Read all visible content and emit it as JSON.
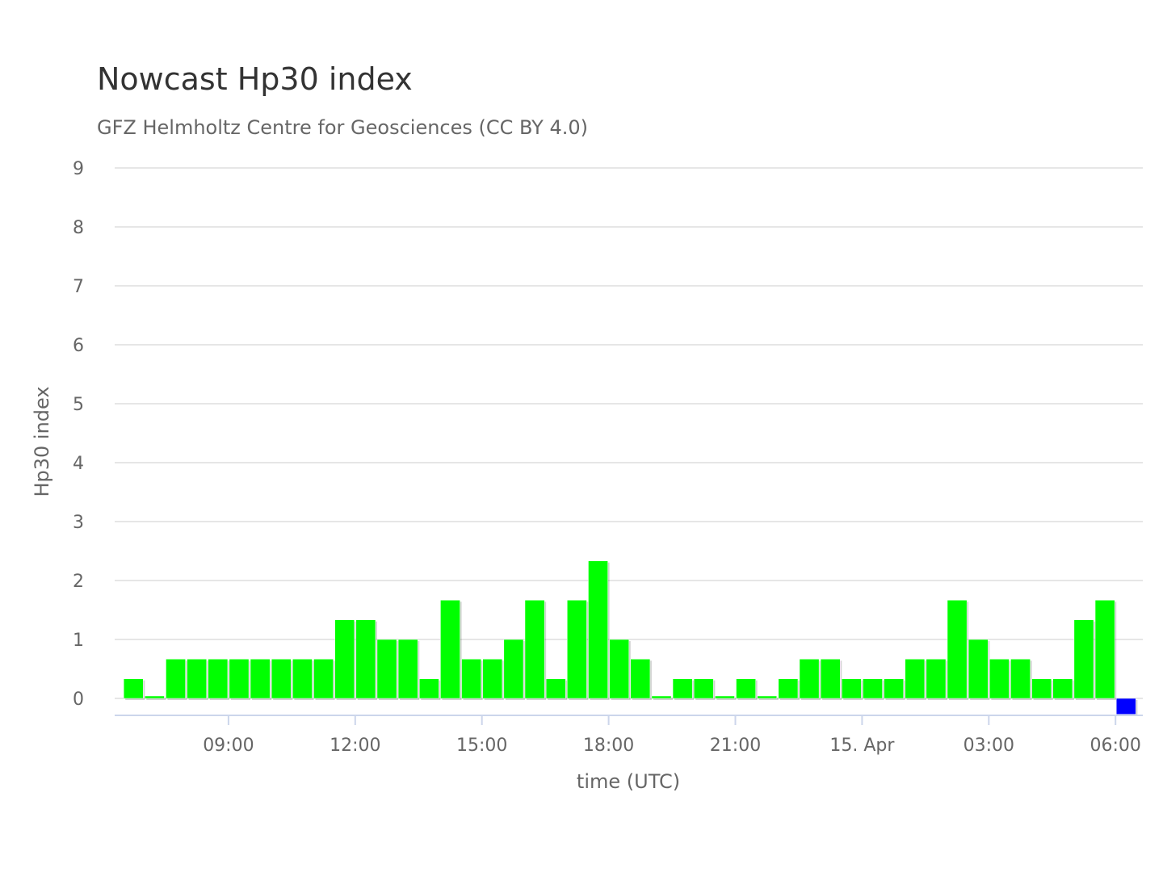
{
  "chart_data": {
    "type": "bar",
    "title": "Nowcast Hp30 index",
    "subtitle": "GFZ Helmholtz Centre for Geosciences (CC BY 4.0)",
    "xlabel": "time (UTC)",
    "ylabel": "Hp30 index",
    "ylim": [
      0,
      9
    ],
    "yticks": [
      "0",
      "1",
      "2",
      "3",
      "4",
      "5",
      "6",
      "7",
      "8",
      "9"
    ],
    "xticks": [
      {
        "hour": 9,
        "label": "09:00"
      },
      {
        "hour": 12,
        "label": "12:00"
      },
      {
        "hour": 15,
        "label": "15:00"
      },
      {
        "hour": 18,
        "label": "18:00"
      },
      {
        "hour": 21,
        "label": "21:00"
      },
      {
        "hour": 24,
        "label": "15. Apr"
      },
      {
        "hour": 27,
        "label": "03:00"
      },
      {
        "hour": 30,
        "label": "06:00"
      }
    ],
    "x_start_hour": 6.5,
    "bin_hours": 0.5,
    "grid": true,
    "colors": {
      "bar": "#00ff00",
      "pending": "#0000ff"
    },
    "values": [
      0.333,
      0,
      0.667,
      0.667,
      0.667,
      0.667,
      0.667,
      0.667,
      0.667,
      0.667,
      1.333,
      1.333,
      1,
      1,
      0.333,
      1.667,
      0.667,
      0.667,
      1,
      1.667,
      0.333,
      1.667,
      2.333,
      1,
      0.667,
      0,
      0.333,
      0.333,
      0,
      0.333,
      0,
      0.333,
      0.667,
      0.667,
      0.333,
      0.333,
      0.333,
      0.667,
      0.667,
      1.667,
      1,
      0.667,
      0.667,
      0.333,
      0.333,
      1.333,
      1.667,
      -0.27
    ]
  }
}
